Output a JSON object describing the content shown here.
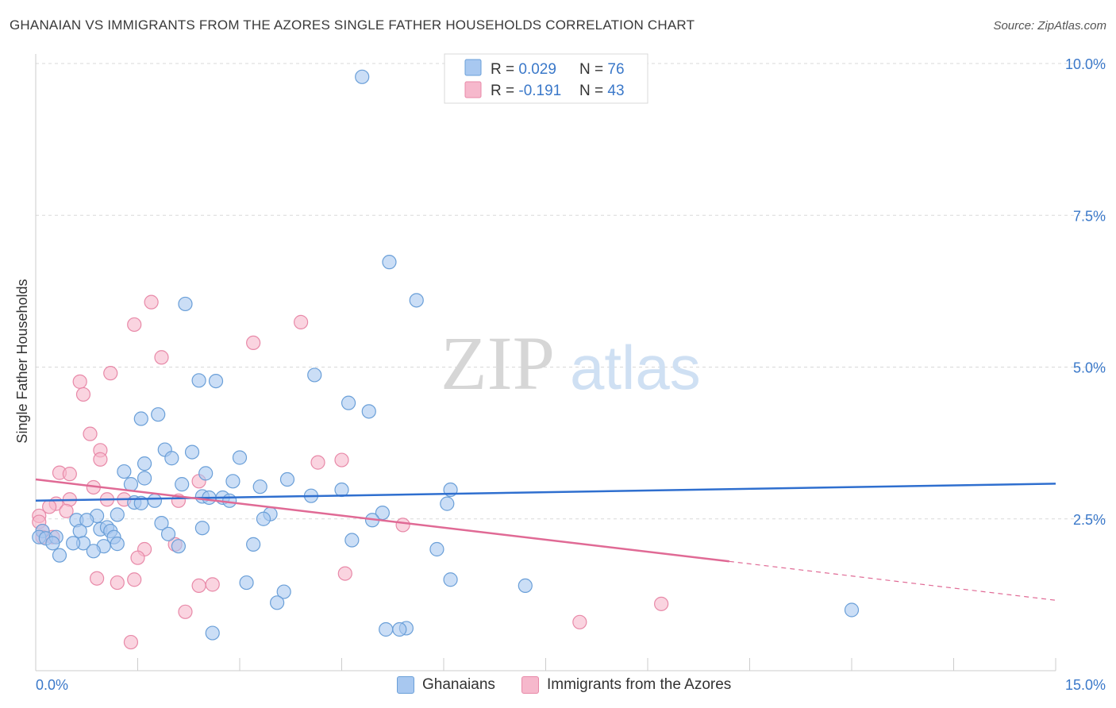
{
  "header": {
    "title": "GHANAIAN VS IMMIGRANTS FROM THE AZORES SINGLE FATHER HOUSEHOLDS CORRELATION CHART",
    "source": "Source: ZipAtlas.com"
  },
  "watermark": {
    "zip": "ZIP",
    "atlas": "atlas"
  },
  "colors": {
    "blue_fill": "#a8c8f0",
    "blue_stroke": "#6a9fd8",
    "blue_line": "#2f6fcf",
    "pink_fill": "#f6b8cc",
    "pink_stroke": "#e889a8",
    "pink_line": "#e06a95",
    "axis_text": "#3a78c9",
    "grid": "#d9d9d9"
  },
  "legend_top": {
    "rows": [
      {
        "r_label": "R = ",
        "r_value": "0.029",
        "n_label": "N = ",
        "n_value": "76"
      },
      {
        "r_label": "R = ",
        "r_value": "-0.191",
        "n_label": "N = ",
        "n_value": "43"
      }
    ]
  },
  "legend_bottom": {
    "items": [
      "Ghanaians",
      "Immigrants from the Azores"
    ]
  },
  "chart_data": {
    "type": "scatter",
    "title": "GHANAIAN VS IMMIGRANTS FROM THE AZORES SINGLE FATHER HOUSEHOLDS CORRELATION CHART",
    "xlabel": "",
    "ylabel": "Single Father Households",
    "xlim": [
      0,
      15
    ],
    "ylim": [
      0,
      10
    ],
    "x_tick_labels": [
      "0.0%",
      "15.0%"
    ],
    "y_ticks": [
      2.5,
      5.0,
      7.5,
      10.0
    ],
    "y_tick_labels": [
      "2.5%",
      "5.0%",
      "7.5%",
      "10.0%"
    ],
    "grid": true,
    "series": [
      {
        "name": "Ghanaians",
        "r": 0.029,
        "n": 76,
        "trend": {
          "x": [
            0,
            15
          ],
          "y": [
            2.8,
            3.08
          ]
        },
        "points": [
          [
            4.8,
            9.78
          ],
          [
            5.2,
            6.73
          ],
          [
            5.6,
            6.1
          ],
          [
            2.2,
            6.04
          ],
          [
            4.1,
            4.87
          ],
          [
            2.4,
            4.78
          ],
          [
            2.65,
            4.77
          ],
          [
            4.6,
            4.41
          ],
          [
            4.9,
            4.27
          ],
          [
            1.8,
            4.22
          ],
          [
            1.55,
            4.15
          ],
          [
            1.9,
            3.64
          ],
          [
            2.3,
            3.6
          ],
          [
            2.0,
            3.5
          ],
          [
            3.0,
            3.51
          ],
          [
            1.6,
            3.41
          ],
          [
            1.3,
            3.28
          ],
          [
            1.6,
            3.17
          ],
          [
            2.5,
            3.25
          ],
          [
            3.7,
            3.15
          ],
          [
            1.4,
            3.07
          ],
          [
            2.15,
            3.07
          ],
          [
            2.9,
            3.12
          ],
          [
            3.3,
            3.03
          ],
          [
            6.1,
            2.98
          ],
          [
            4.5,
            2.98
          ],
          [
            4.05,
            2.88
          ],
          [
            2.75,
            2.85
          ],
          [
            2.45,
            2.87
          ],
          [
            1.75,
            2.8
          ],
          [
            1.45,
            2.77
          ],
          [
            2.85,
            2.8
          ],
          [
            1.55,
            2.76
          ],
          [
            6.05,
            2.75
          ],
          [
            1.2,
            2.57
          ],
          [
            5.1,
            2.6
          ],
          [
            3.45,
            2.58
          ],
          [
            3.35,
            2.5
          ],
          [
            4.95,
            2.48
          ],
          [
            0.9,
            2.55
          ],
          [
            0.6,
            2.48
          ],
          [
            0.75,
            2.48
          ],
          [
            1.85,
            2.43
          ],
          [
            2.45,
            2.35
          ],
          [
            0.95,
            2.33
          ],
          [
            1.05,
            2.36
          ],
          [
            0.65,
            2.3
          ],
          [
            1.95,
            2.25
          ],
          [
            1.1,
            2.3
          ],
          [
            0.1,
            2.3
          ],
          [
            0.05,
            2.2
          ],
          [
            0.15,
            2.18
          ],
          [
            0.3,
            2.2
          ],
          [
            0.25,
            2.1
          ],
          [
            0.7,
            2.1
          ],
          [
            1.0,
            2.05
          ],
          [
            0.55,
            2.1
          ],
          [
            1.15,
            2.2
          ],
          [
            0.85,
            1.97
          ],
          [
            2.1,
            2.05
          ],
          [
            3.2,
            2.08
          ],
          [
            4.65,
            2.15
          ],
          [
            5.9,
            2.0
          ],
          [
            0.35,
            1.9
          ],
          [
            1.2,
            2.09
          ],
          [
            6.1,
            1.5
          ],
          [
            3.1,
            1.45
          ],
          [
            7.2,
            1.4
          ],
          [
            3.65,
            1.3
          ],
          [
            3.55,
            1.12
          ],
          [
            12.0,
            1.0
          ],
          [
            5.45,
            0.7
          ],
          [
            5.35,
            0.68
          ],
          [
            5.15,
            0.68
          ],
          [
            2.6,
            0.62
          ],
          [
            2.55,
            2.85
          ]
        ]
      },
      {
        "name": "Immigrants from the Azores",
        "r": -0.191,
        "n": 43,
        "trend": {
          "x": [
            0,
            10.2
          ],
          "y": [
            3.15,
            1.8
          ]
        },
        "trend_dashed": {
          "x": [
            10.2,
            15
          ],
          "y": [
            1.8,
            1.16
          ]
        },
        "points": [
          [
            1.7,
            6.07
          ],
          [
            1.45,
            5.7
          ],
          [
            3.9,
            5.74
          ],
          [
            3.2,
            5.4
          ],
          [
            1.85,
            5.16
          ],
          [
            1.1,
            4.9
          ],
          [
            0.65,
            4.76
          ],
          [
            0.7,
            4.55
          ],
          [
            0.8,
            3.9
          ],
          [
            0.95,
            3.63
          ],
          [
            0.95,
            3.48
          ],
          [
            4.15,
            3.43
          ],
          [
            4.5,
            3.47
          ],
          [
            0.35,
            3.26
          ],
          [
            0.5,
            3.24
          ],
          [
            2.4,
            3.12
          ],
          [
            0.85,
            3.02
          ],
          [
            0.5,
            2.82
          ],
          [
            1.3,
            2.82
          ],
          [
            1.05,
            2.82
          ],
          [
            2.1,
            2.8
          ],
          [
            0.3,
            2.75
          ],
          [
            0.2,
            2.7
          ],
          [
            0.45,
            2.63
          ],
          [
            0.05,
            2.55
          ],
          [
            0.05,
            2.45
          ],
          [
            5.4,
            2.4
          ],
          [
            0.1,
            2.3
          ],
          [
            0.1,
            2.2
          ],
          [
            0.25,
            2.2
          ],
          [
            2.05,
            2.08
          ],
          [
            1.6,
            2.0
          ],
          [
            1.5,
            1.86
          ],
          [
            4.55,
            1.6
          ],
          [
            1.45,
            1.5
          ],
          [
            0.9,
            1.52
          ],
          [
            1.2,
            1.45
          ],
          [
            2.4,
            1.4
          ],
          [
            2.6,
            1.42
          ],
          [
            9.2,
            1.1
          ],
          [
            2.2,
            0.97
          ],
          [
            8.0,
            0.8
          ],
          [
            1.4,
            0.47
          ]
        ]
      }
    ]
  }
}
